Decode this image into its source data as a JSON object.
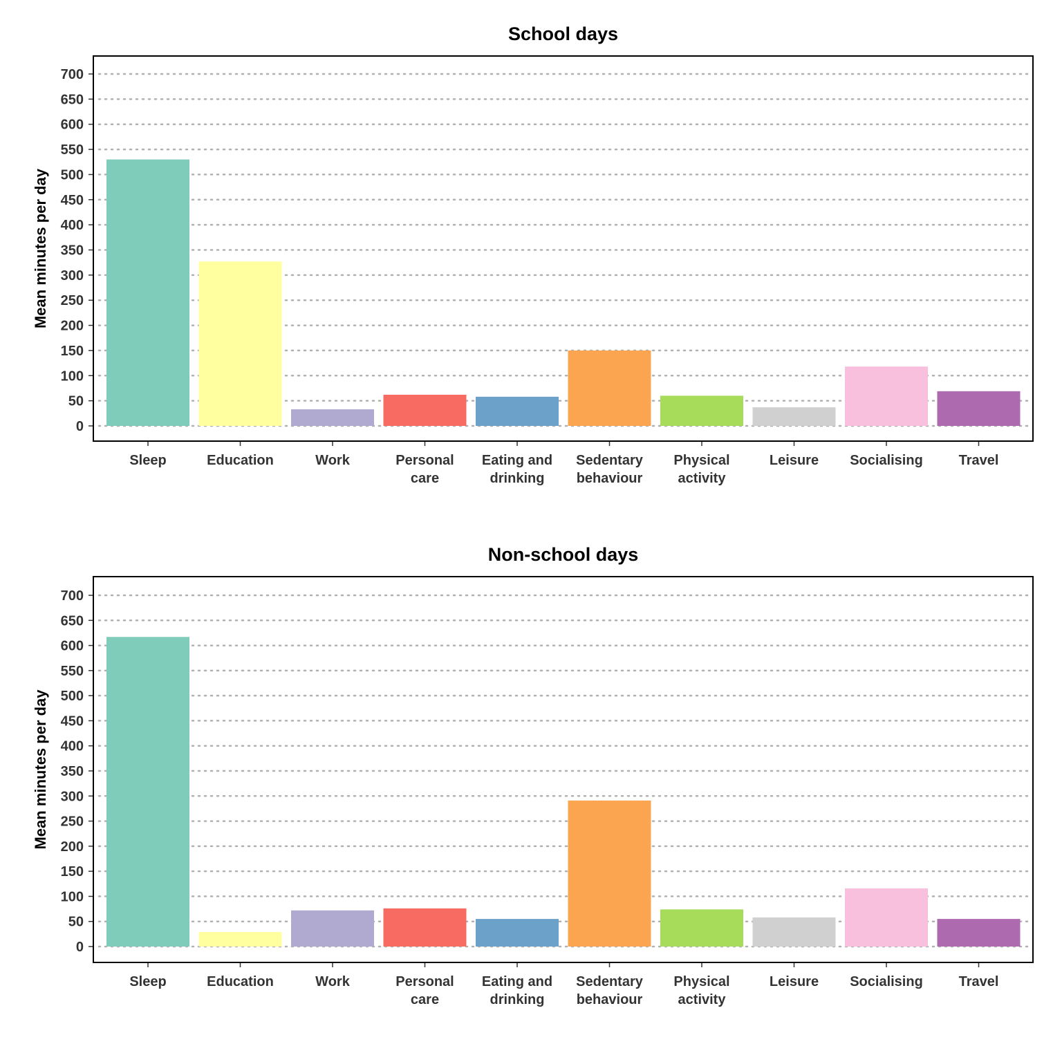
{
  "chart_data": [
    {
      "type": "bar",
      "title": "School days",
      "xlabel": "",
      "ylabel": "Mean minutes per day",
      "ylim": [
        0,
        700
      ],
      "yticks": [
        0,
        50,
        100,
        150,
        200,
        250,
        300,
        350,
        400,
        450,
        500,
        550,
        600,
        650,
        700
      ],
      "grid": true,
      "categories": [
        [
          "Sleep"
        ],
        [
          "Education"
        ],
        [
          "Work"
        ],
        [
          "Personal",
          "care"
        ],
        [
          "Eating and",
          "drinking"
        ],
        [
          "Sedentary",
          "behaviour"
        ],
        [
          "Physical",
          "activity"
        ],
        [
          "Leisure"
        ],
        [
          "Socialising"
        ],
        [
          "Travel"
        ]
      ],
      "values": [
        530,
        327,
        33,
        62,
        58,
        150,
        60,
        37,
        118,
        69
      ]
    },
    {
      "type": "bar",
      "title": "Non-school days",
      "xlabel": "",
      "ylabel": "Mean minutes per day",
      "ylim": [
        0,
        700
      ],
      "yticks": [
        0,
        50,
        100,
        150,
        200,
        250,
        300,
        350,
        400,
        450,
        500,
        550,
        600,
        650,
        700
      ],
      "grid": true,
      "categories": [
        [
          "Sleep"
        ],
        [
          "Education"
        ],
        [
          "Work"
        ],
        [
          "Personal",
          "care"
        ],
        [
          "Eating and",
          "drinking"
        ],
        [
          "Sedentary",
          "behaviour"
        ],
        [
          "Physical",
          "activity"
        ],
        [
          "Leisure"
        ],
        [
          "Socialising"
        ],
        [
          "Travel"
        ]
      ],
      "values": [
        617,
        29,
        72,
        76,
        55,
        291,
        74,
        58,
        116,
        55
      ]
    }
  ],
  "colors": [
    "#7fccba",
    "#ffff9f",
    "#b0aad0",
    "#f76b63",
    "#6ca2ca",
    "#fba550",
    "#a6dc59",
    "#d0d0d0",
    "#f8c0dd",
    "#ad6aaf"
  ]
}
